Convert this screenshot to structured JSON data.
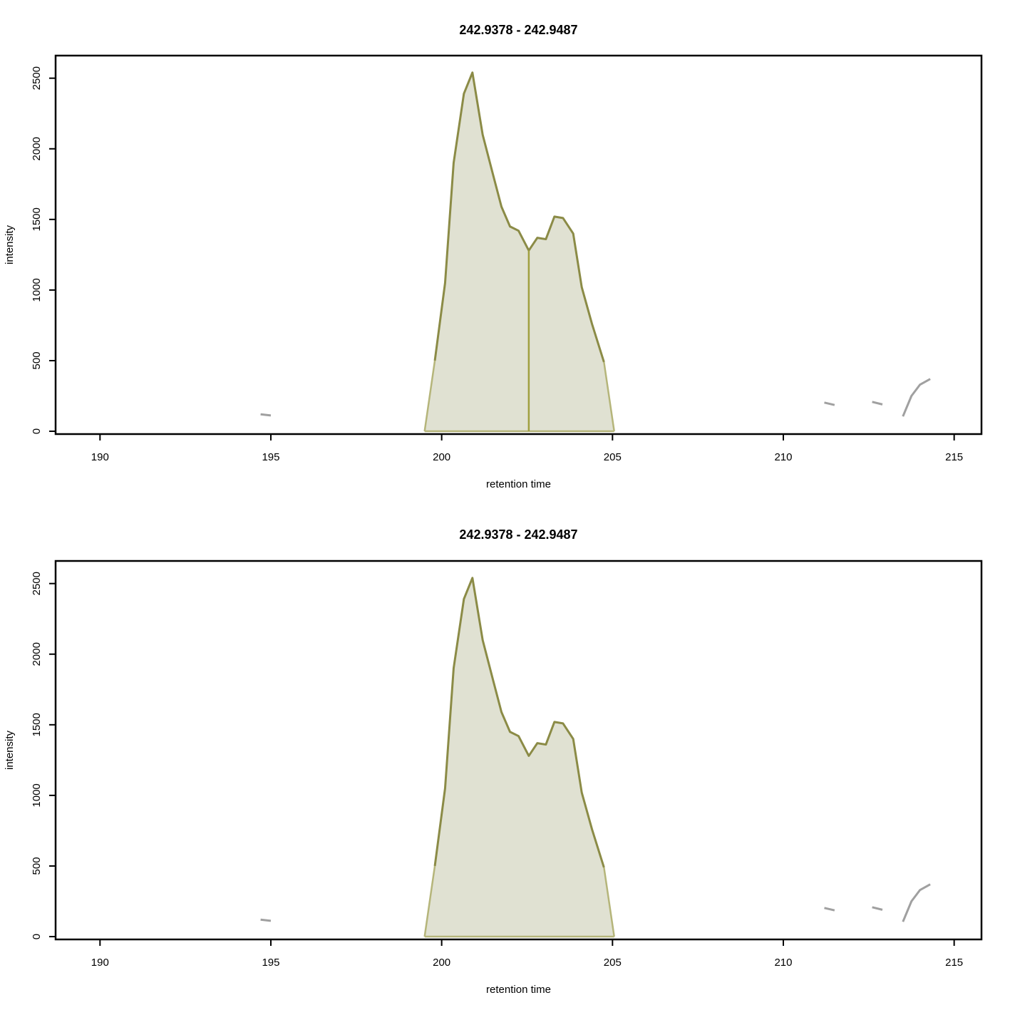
{
  "colors": {
    "peak_line": "#8b8b46",
    "peak_fill": "#e0e1d2",
    "peak_edge": "#b5b57a",
    "split_line": "#a0a040",
    "noise": "#a0a0a0",
    "frame": "#000000"
  },
  "chart_data": [
    {
      "type": "area",
      "title": "242.9378 - 242.9487",
      "xlabel": "retention time",
      "ylabel": "intensity",
      "xlim": [
        188.7,
        215.8
      ],
      "ylim": [
        -20,
        2660
      ],
      "xticks": [
        190,
        195,
        200,
        205,
        210,
        215
      ],
      "yticks": [
        0,
        500,
        1000,
        1500,
        2000,
        2500
      ],
      "grid": false,
      "legend": "none",
      "peak": {
        "x": [
          199.5,
          199.8,
          200.1,
          200.35,
          200.65,
          200.9,
          201.2,
          201.5,
          201.75,
          202.0,
          202.25,
          202.55,
          202.8,
          203.05,
          203.3,
          203.55,
          203.85,
          204.1,
          204.4,
          204.75,
          205.05
        ],
        "y": [
          0,
          500,
          1050,
          1900,
          2390,
          2540,
          2100,
          1820,
          1590,
          1450,
          1420,
          1280,
          1370,
          1360,
          1520,
          1510,
          1400,
          1020,
          760,
          490,
          0
        ],
        "boundaries": [
          199.5,
          202.55,
          205.05
        ]
      },
      "noise": [
        {
          "x": [
            194.7,
            195.0
          ],
          "y": [
            120,
            112
          ]
        },
        {
          "x": [
            211.2,
            211.5
          ],
          "y": [
            203,
            186
          ]
        },
        {
          "x": [
            212.6,
            212.9
          ],
          "y": [
            208,
            190
          ]
        },
        {
          "x": [
            213.5,
            213.75,
            214.0,
            214.3
          ],
          "y": [
            105,
            250,
            330,
            370
          ]
        }
      ]
    },
    {
      "type": "area",
      "title": "242.9378 - 242.9487",
      "xlabel": "retention time",
      "ylabel": "intensity",
      "xlim": [
        188.7,
        215.8
      ],
      "ylim": [
        -20,
        2660
      ],
      "xticks": [
        190,
        195,
        200,
        205,
        210,
        215
      ],
      "yticks": [
        0,
        500,
        1000,
        1500,
        2000,
        2500
      ],
      "grid": false,
      "legend": "none",
      "peak": {
        "x": [
          199.5,
          199.8,
          200.1,
          200.35,
          200.65,
          200.9,
          201.2,
          201.5,
          201.75,
          202.0,
          202.25,
          202.55,
          202.8,
          203.05,
          203.3,
          203.55,
          203.85,
          204.1,
          204.4,
          204.75,
          205.05
        ],
        "y": [
          0,
          500,
          1050,
          1900,
          2390,
          2540,
          2100,
          1820,
          1590,
          1450,
          1420,
          1280,
          1370,
          1360,
          1520,
          1510,
          1400,
          1020,
          760,
          490,
          0
        ],
        "boundaries": [
          199.5,
          205.05
        ]
      },
      "noise": [
        {
          "x": [
            194.7,
            195.0
          ],
          "y": [
            120,
            112
          ]
        },
        {
          "x": [
            211.2,
            211.5
          ],
          "y": [
            203,
            186
          ]
        },
        {
          "x": [
            212.6,
            212.9
          ],
          "y": [
            208,
            190
          ]
        },
        {
          "x": [
            213.5,
            213.75,
            214.0,
            214.3
          ],
          "y": [
            105,
            250,
            330,
            370
          ]
        }
      ]
    }
  ]
}
